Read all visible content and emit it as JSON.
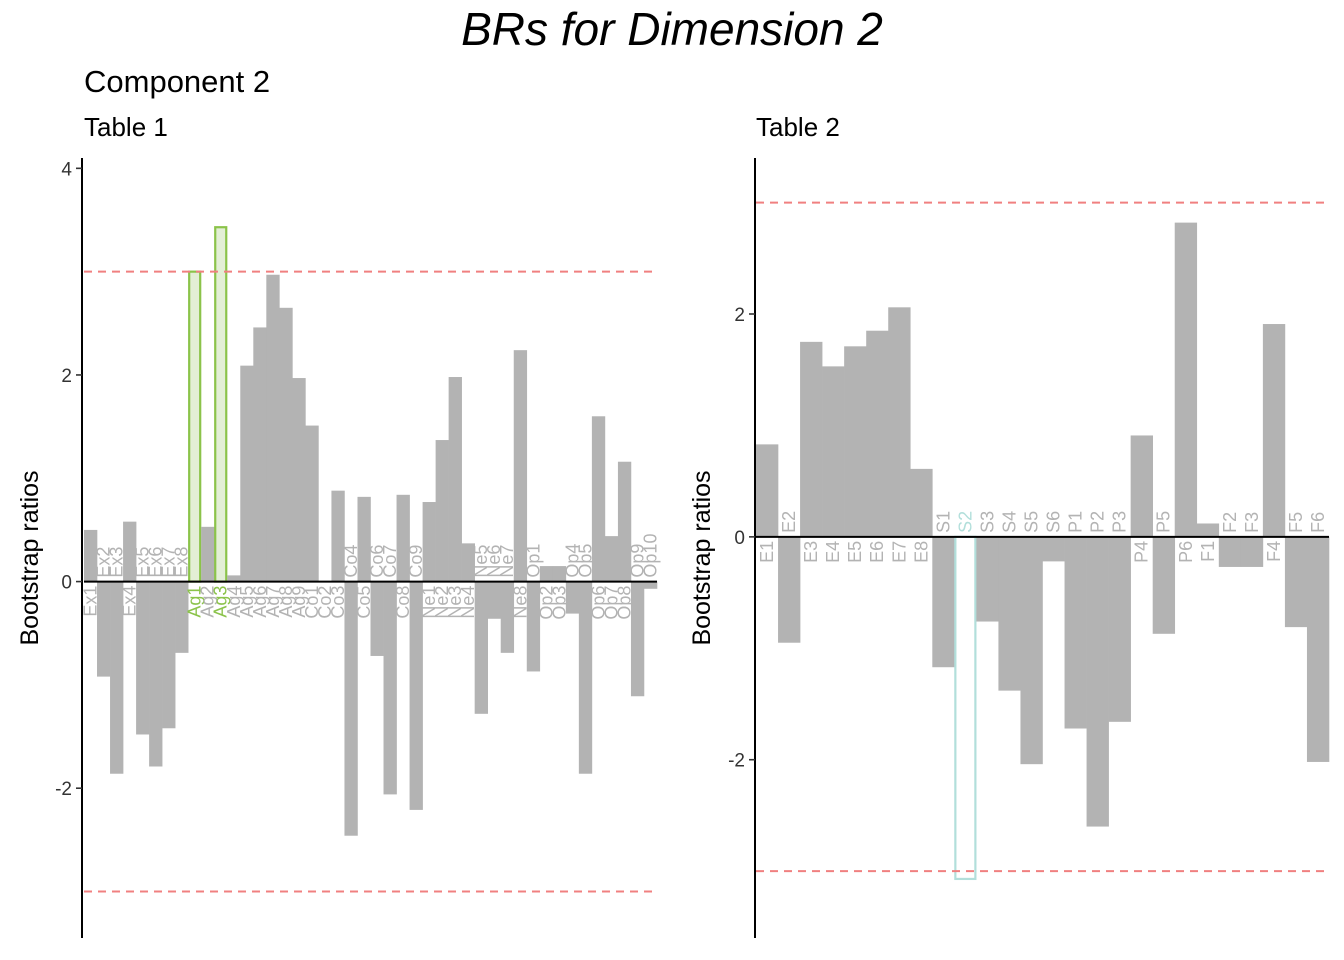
{
  "title": "BRs for Dimension 2",
  "subtitle": "Component 2",
  "colors": {
    "bar": "#b3b3b3",
    "threshold": "#f08080",
    "highlight_table1": "#8bc34a",
    "highlight_table2": "#b2dfdb",
    "zero_line": "#000000"
  },
  "chart_data": [
    {
      "type": "bar",
      "title": "Table 1",
      "ylabel": "Bootstrap ratios",
      "ylim": [
        -3.45,
        4.1
      ],
      "yticks": [
        -2,
        0,
        2,
        4
      ],
      "threshold_lines": [
        3,
        -3
      ],
      "grid": false,
      "categories": [
        "Ex1",
        "Ex2",
        "Ex3",
        "Ex4",
        "Ex5",
        "Ex6",
        "Ex7",
        "Ex8",
        "Ag1",
        "Ag2",
        "Ag3",
        "Ag4",
        "Ag5",
        "Ag6",
        "Ag7",
        "Ag8",
        "Ag9",
        "Co1",
        "Co2",
        "Co3",
        "Co4",
        "Co5",
        "Co6",
        "Co7",
        "Co8",
        "Co9",
        "Ne1",
        "Ne2",
        "Ne3",
        "Ne4",
        "Ne5",
        "Ne6",
        "Ne7",
        "Ne8",
        "Op1",
        "Op2",
        "Op3",
        "Op4",
        "Op5",
        "Op6",
        "Op7",
        "Op8",
        "Op9",
        "Op10"
      ],
      "values": [
        0.5,
        -0.92,
        -1.86,
        0.58,
        -1.48,
        -1.79,
        -1.42,
        -0.69,
        3.0,
        0.53,
        3.43,
        0.06,
        2.09,
        2.46,
        2.97,
        2.65,
        1.97,
        1.51,
        0.0,
        0.88,
        -2.46,
        0.82,
        -0.72,
        -2.06,
        0.84,
        -2.21,
        0.77,
        1.37,
        1.98,
        0.37,
        -1.28,
        -0.36,
        -0.69,
        2.24,
        -0.87,
        0.15,
        0.15,
        -0.31,
        -1.86,
        1.6,
        0.44,
        1.16,
        -1.11,
        -0.07
      ],
      "highlighted": [
        "Ag1",
        "Ag3"
      ]
    },
    {
      "type": "bar",
      "title": "Table 2",
      "ylabel": "Bootstrap ratios",
      "ylim": [
        -3.6,
        3.4
      ],
      "yticks": [
        -2,
        0,
        2
      ],
      "threshold_lines": [
        3,
        -3
      ],
      "grid": false,
      "categories": [
        "E1",
        "E2",
        "E3",
        "E4",
        "E5",
        "E6",
        "E7",
        "E8",
        "S1",
        "S2",
        "S3",
        "S4",
        "S5",
        "S6",
        "P1",
        "P2",
        "P3",
        "P4",
        "P5",
        "P6",
        "F1",
        "F2",
        "F3",
        "F4",
        "F5",
        "F6"
      ],
      "values": [
        0.83,
        -0.95,
        1.75,
        1.53,
        1.71,
        1.85,
        2.06,
        0.61,
        -1.17,
        -3.07,
        -0.76,
        -1.38,
        -2.04,
        -0.22,
        -1.72,
        -2.6,
        -1.66,
        0.91,
        -0.87,
        2.82,
        0.12,
        -0.27,
        -0.27,
        1.91,
        -0.81,
        -2.02
      ],
      "highlighted": [
        "S2"
      ]
    }
  ]
}
